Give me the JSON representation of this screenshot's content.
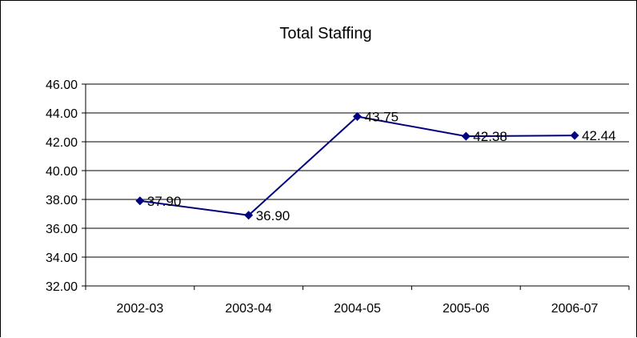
{
  "chart_data": {
    "type": "line",
    "title": "Total Staffing",
    "xlabel": "",
    "ylabel": "",
    "categories": [
      "2002-03",
      "2003-04",
      "2004-05",
      "2005-06",
      "2006-07"
    ],
    "series": [
      {
        "values": [
          37.9,
          36.9,
          43.75,
          42.38,
          42.44
        ],
        "data_labels": [
          "37.90",
          "36.90",
          "43.75",
          "42.38",
          "42.44"
        ],
        "color": "#000080",
        "marker": "diamond"
      }
    ],
    "ylim": [
      32,
      46
    ],
    "y_ticks": [
      "32.00",
      "34.00",
      "36.00",
      "38.00",
      "40.00",
      "42.00",
      "44.00",
      "46.00"
    ],
    "y_tick_values": [
      32,
      34,
      36,
      38,
      40,
      42,
      44,
      46
    ],
    "grid": true,
    "legend": "none"
  }
}
